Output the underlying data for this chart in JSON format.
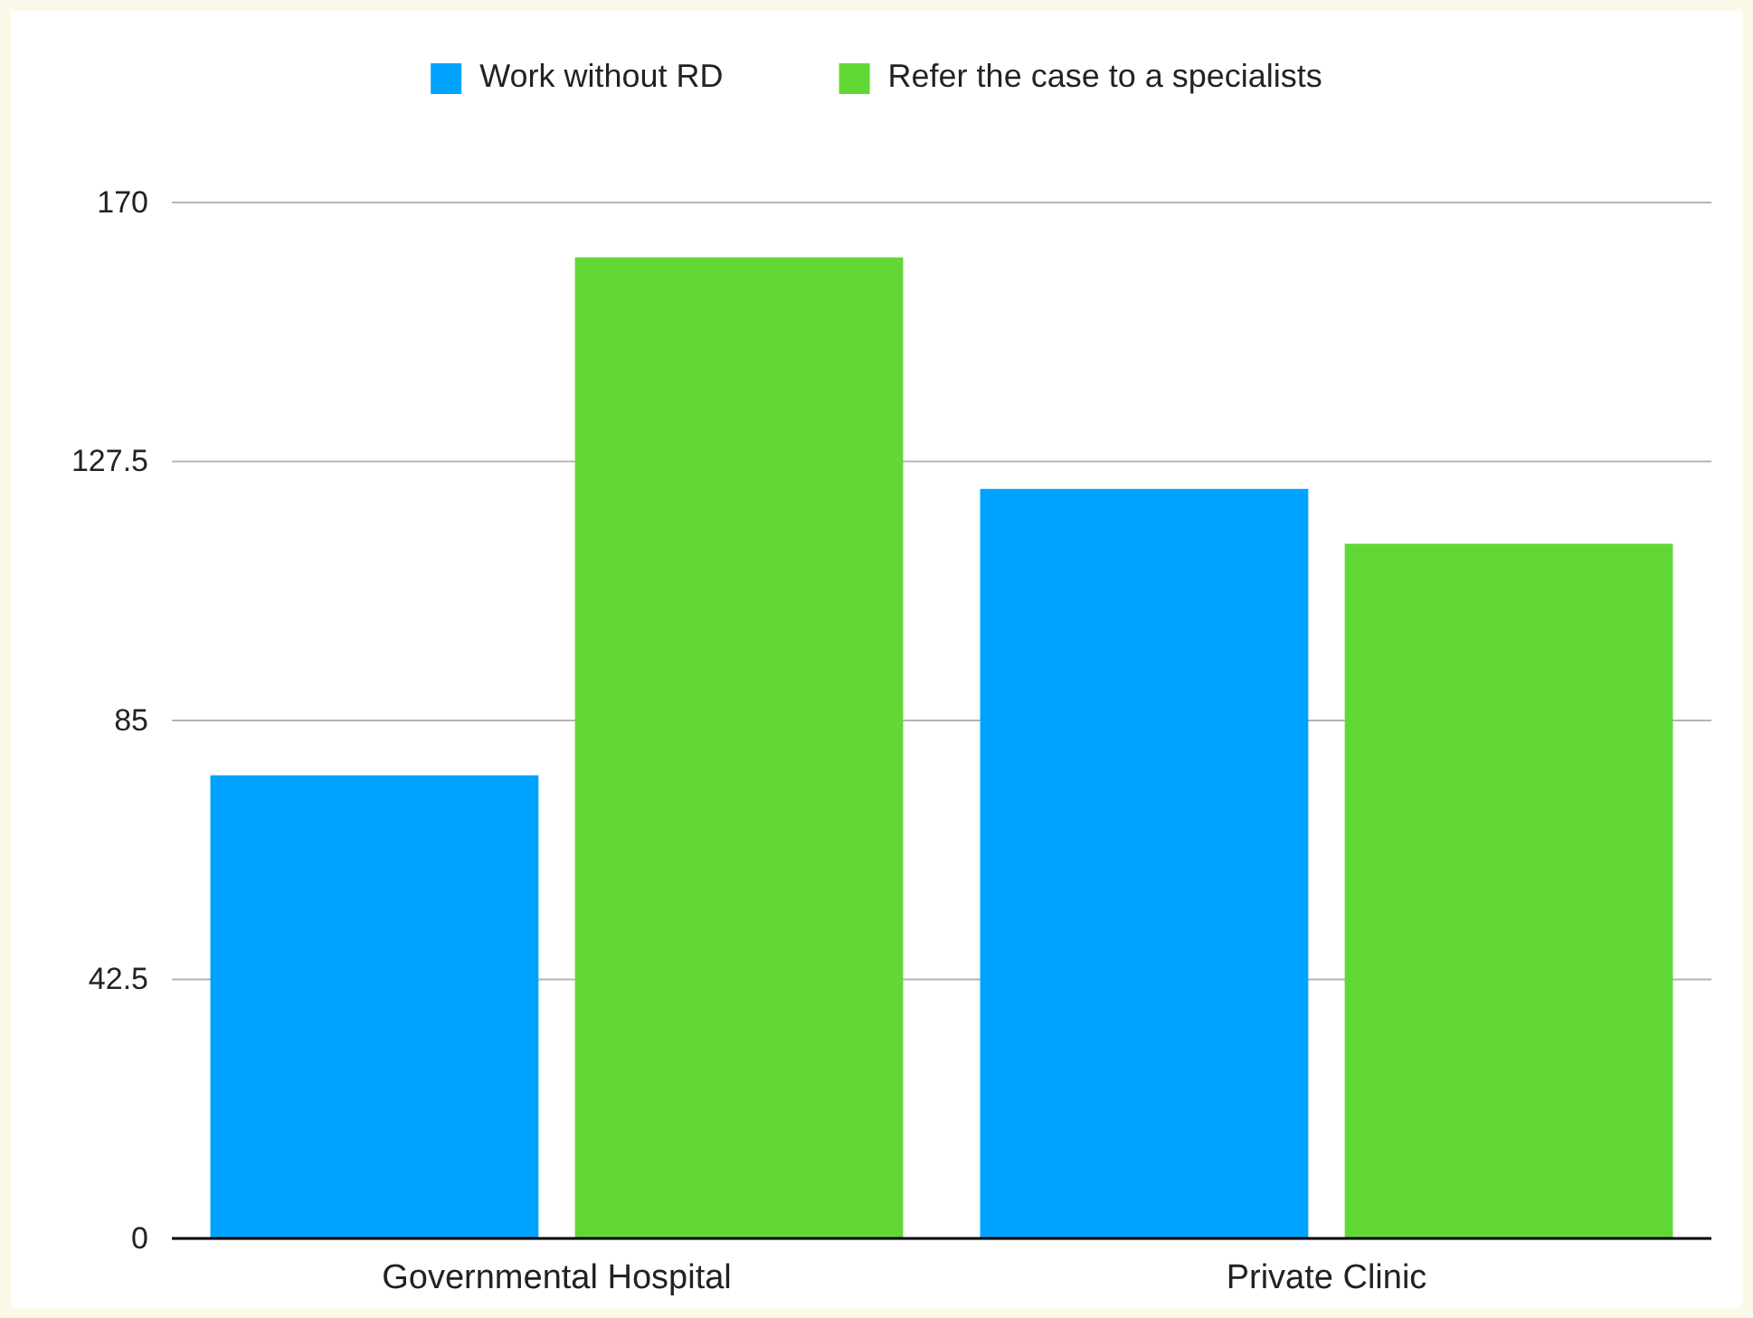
{
  "chart_data": {
    "type": "bar",
    "categories": [
      "Governmental Hospital",
      "Private Clinic"
    ],
    "series": [
      {
        "name": "Work without RD",
        "color": "#00a2ff",
        "values": [
          76,
          123
        ]
      },
      {
        "name": "Refer the case to a specialists",
        "color": "#61d836",
        "values": [
          161,
          114
        ]
      }
    ],
    "ylim": [
      0,
      170
    ],
    "yticks": [
      0,
      42.5,
      85,
      127.5,
      170
    ],
    "grid": "y",
    "legend": "top"
  }
}
